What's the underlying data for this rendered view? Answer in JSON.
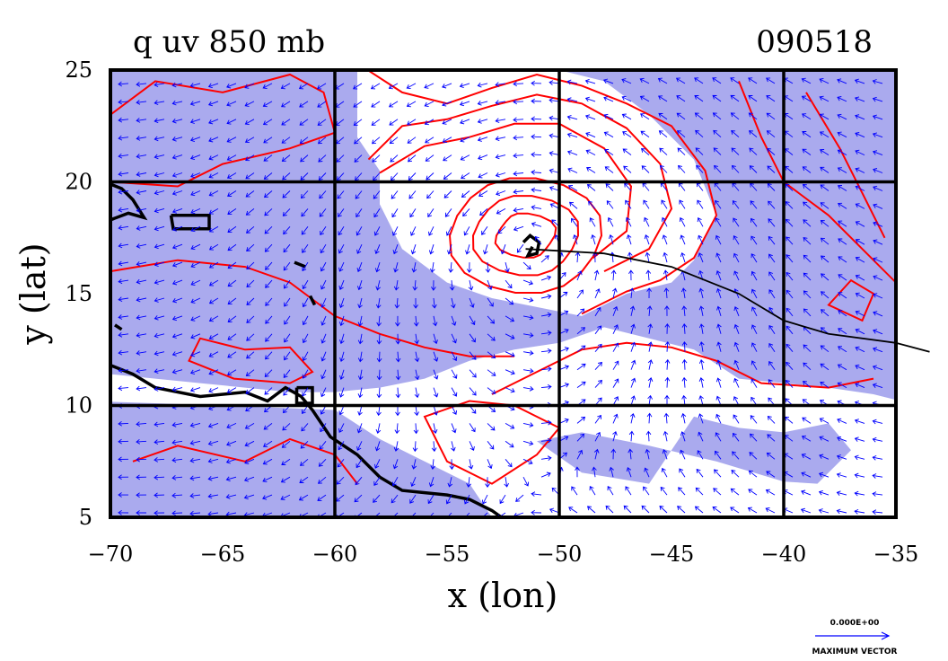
{
  "chart_data": {
    "type": "contour-vector-map",
    "title": "q uv 850 mb",
    "date_label": "090518",
    "xlabel": "x (lon)",
    "ylabel": "y (lat)",
    "xlim": [
      -70,
      -35
    ],
    "ylim": [
      5,
      25
    ],
    "x_ticks": [
      -70,
      -65,
      -60,
      -55,
      -50,
      -45,
      -40,
      -35
    ],
    "x_tick_labels": [
      "−70",
      "−65",
      "−60",
      "−55",
      "−50",
      "−45",
      "−40",
      "−35"
    ],
    "y_ticks": [
      5,
      10,
      15,
      20,
      25
    ],
    "y_tick_labels": [
      "5",
      "10",
      "15",
      "20",
      "25"
    ],
    "grid_lon": [
      -60,
      -50,
      -40
    ],
    "grid_lat": [
      10,
      20
    ],
    "reference_vector_value": "0.000E+00",
    "reference_vector_label": "MAXIMUM VECTOR",
    "storm_center": {
      "lon": -51.2,
      "lat": 17.0
    },
    "storm_track": [
      [
        -51.5,
        17.0
      ],
      [
        -48,
        16.8
      ],
      [
        -45,
        16.2
      ],
      [
        -42,
        15.0
      ],
      [
        -40,
        13.8
      ],
      [
        -38,
        13.2
      ],
      [
        -35,
        12.8
      ],
      [
        -33.5,
        12.4
      ]
    ],
    "colors": {
      "moist_fill": "#aaaaee",
      "contour": "#ff0000",
      "vector": "#0000ff",
      "land": "#000000",
      "grid": "#000000"
    }
  }
}
